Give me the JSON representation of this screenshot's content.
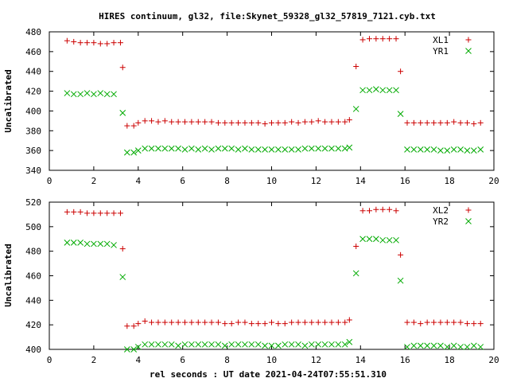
{
  "title": "HIRES continuum, gl32, file:Skynet_59328_gl32_57819_7121.cyb.txt",
  "xlabel": "rel seconds : UT date 2021-04-24T07:55:51.310",
  "colors": {
    "series_a": "#cc0000",
    "series_b": "#00aa00"
  },
  "chart_data": [
    {
      "type": "scatter",
      "ylabel": "Uncalibrated",
      "xlim": [
        0,
        20
      ],
      "ylim": [
        340,
        480
      ],
      "xticks": [
        0,
        2,
        4,
        6,
        8,
        10,
        12,
        14,
        16,
        18,
        20
      ],
      "yticks": [
        340,
        360,
        380,
        400,
        420,
        440,
        460,
        480
      ],
      "legend_position": "top-right",
      "series": [
        {
          "name": "XL1",
          "marker": "plus",
          "points": [
            [
              0.8,
              471
            ],
            [
              1.1,
              470
            ],
            [
              1.4,
              469
            ],
            [
              1.7,
              469
            ],
            [
              2.0,
              469
            ],
            [
              2.3,
              468
            ],
            [
              2.6,
              468
            ],
            [
              2.9,
              469
            ],
            [
              3.2,
              469
            ],
            [
              3.3,
              444
            ],
            [
              3.5,
              385
            ],
            [
              3.8,
              385
            ],
            [
              4.0,
              388
            ],
            [
              4.3,
              390
            ],
            [
              4.6,
              390
            ],
            [
              4.9,
              389
            ],
            [
              5.2,
              390
            ],
            [
              5.5,
              389
            ],
            [
              5.8,
              389
            ],
            [
              6.1,
              389
            ],
            [
              6.4,
              389
            ],
            [
              6.7,
              389
            ],
            [
              7.0,
              389
            ],
            [
              7.3,
              389
            ],
            [
              7.6,
              388
            ],
            [
              7.9,
              388
            ],
            [
              8.2,
              388
            ],
            [
              8.5,
              388
            ],
            [
              8.8,
              388
            ],
            [
              9.1,
              388
            ],
            [
              9.4,
              388
            ],
            [
              9.7,
              387
            ],
            [
              10.0,
              388
            ],
            [
              10.3,
              388
            ],
            [
              10.6,
              388
            ],
            [
              10.9,
              389
            ],
            [
              11.2,
              388
            ],
            [
              11.5,
              389
            ],
            [
              11.8,
              389
            ],
            [
              12.1,
              390
            ],
            [
              12.4,
              389
            ],
            [
              12.7,
              389
            ],
            [
              13.0,
              389
            ],
            [
              13.3,
              389
            ],
            [
              13.5,
              391
            ],
            [
              13.8,
              445
            ],
            [
              14.1,
              472
            ],
            [
              14.4,
              473
            ],
            [
              14.7,
              473
            ],
            [
              15.0,
              473
            ],
            [
              15.3,
              473
            ],
            [
              15.6,
              473
            ],
            [
              15.8,
              440
            ],
            [
              16.1,
              388
            ],
            [
              16.4,
              388
            ],
            [
              16.7,
              388
            ],
            [
              17.0,
              388
            ],
            [
              17.3,
              388
            ],
            [
              17.6,
              388
            ],
            [
              17.9,
              388
            ],
            [
              18.2,
              389
            ],
            [
              18.5,
              388
            ],
            [
              18.8,
              388
            ],
            [
              19.1,
              387
            ],
            [
              19.4,
              388
            ]
          ]
        },
        {
          "name": "YR1",
          "marker": "cross",
          "points": [
            [
              0.8,
              418
            ],
            [
              1.1,
              417
            ],
            [
              1.4,
              417
            ],
            [
              1.7,
              418
            ],
            [
              2.0,
              417
            ],
            [
              2.3,
              418
            ],
            [
              2.6,
              417
            ],
            [
              2.9,
              417
            ],
            [
              3.3,
              398
            ],
            [
              3.5,
              358
            ],
            [
              3.8,
              358
            ],
            [
              4.0,
              360
            ],
            [
              4.3,
              362
            ],
            [
              4.6,
              362
            ],
            [
              4.9,
              362
            ],
            [
              5.2,
              362
            ],
            [
              5.5,
              362
            ],
            [
              5.8,
              362
            ],
            [
              6.1,
              361
            ],
            [
              6.4,
              362
            ],
            [
              6.7,
              361
            ],
            [
              7.0,
              362
            ],
            [
              7.3,
              361
            ],
            [
              7.6,
              362
            ],
            [
              7.9,
              362
            ],
            [
              8.2,
              362
            ],
            [
              8.5,
              361
            ],
            [
              8.8,
              362
            ],
            [
              9.1,
              361
            ],
            [
              9.4,
              361
            ],
            [
              9.7,
              361
            ],
            [
              10.0,
              361
            ],
            [
              10.3,
              361
            ],
            [
              10.6,
              361
            ],
            [
              10.9,
              361
            ],
            [
              11.2,
              361
            ],
            [
              11.5,
              362
            ],
            [
              11.8,
              362
            ],
            [
              12.1,
              362
            ],
            [
              12.4,
              362
            ],
            [
              12.7,
              362
            ],
            [
              13.0,
              362
            ],
            [
              13.3,
              362
            ],
            [
              13.5,
              363
            ],
            [
              13.8,
              402
            ],
            [
              14.1,
              421
            ],
            [
              14.4,
              421
            ],
            [
              14.7,
              422
            ],
            [
              15.0,
              421
            ],
            [
              15.3,
              421
            ],
            [
              15.6,
              421
            ],
            [
              15.8,
              397
            ],
            [
              16.1,
              361
            ],
            [
              16.4,
              361
            ],
            [
              16.7,
              361
            ],
            [
              17.0,
              361
            ],
            [
              17.3,
              361
            ],
            [
              17.6,
              360
            ],
            [
              17.9,
              360
            ],
            [
              18.2,
              361
            ],
            [
              18.5,
              361
            ],
            [
              18.8,
              360
            ],
            [
              19.1,
              360
            ],
            [
              19.4,
              361
            ]
          ]
        }
      ]
    },
    {
      "type": "scatter",
      "ylabel": "Uncalibrated",
      "xlim": [
        0,
        20
      ],
      "ylim": [
        400,
        520
      ],
      "xticks": [
        0,
        2,
        4,
        6,
        8,
        10,
        12,
        14,
        16,
        18,
        20
      ],
      "yticks": [
        400,
        420,
        440,
        460,
        480,
        500,
        520
      ],
      "legend_position": "top-right",
      "series": [
        {
          "name": "XL2",
          "marker": "plus",
          "points": [
            [
              0.8,
              512
            ],
            [
              1.1,
              512
            ],
            [
              1.4,
              512
            ],
            [
              1.7,
              511
            ],
            [
              2.0,
              511
            ],
            [
              2.3,
              511
            ],
            [
              2.6,
              511
            ],
            [
              2.9,
              511
            ],
            [
              3.2,
              511
            ],
            [
              3.3,
              482
            ],
            [
              3.5,
              419
            ],
            [
              3.8,
              419
            ],
            [
              4.0,
              421
            ],
            [
              4.3,
              423
            ],
            [
              4.6,
              422
            ],
            [
              4.9,
              422
            ],
            [
              5.2,
              422
            ],
            [
              5.5,
              422
            ],
            [
              5.8,
              422
            ],
            [
              6.1,
              422
            ],
            [
              6.4,
              422
            ],
            [
              6.7,
              422
            ],
            [
              7.0,
              422
            ],
            [
              7.3,
              422
            ],
            [
              7.6,
              422
            ],
            [
              7.9,
              421
            ],
            [
              8.2,
              421
            ],
            [
              8.5,
              422
            ],
            [
              8.8,
              422
            ],
            [
              9.1,
              421
            ],
            [
              9.4,
              421
            ],
            [
              9.7,
              421
            ],
            [
              10.0,
              422
            ],
            [
              10.3,
              421
            ],
            [
              10.6,
              421
            ],
            [
              10.9,
              422
            ],
            [
              11.2,
              422
            ],
            [
              11.5,
              422
            ],
            [
              11.8,
              422
            ],
            [
              12.1,
              422
            ],
            [
              12.4,
              422
            ],
            [
              12.7,
              422
            ],
            [
              13.0,
              422
            ],
            [
              13.3,
              422
            ],
            [
              13.5,
              424
            ],
            [
              13.8,
              484
            ],
            [
              14.1,
              513
            ],
            [
              14.4,
              513
            ],
            [
              14.7,
              514
            ],
            [
              15.0,
              514
            ],
            [
              15.3,
              514
            ],
            [
              15.6,
              513
            ],
            [
              15.8,
              477
            ],
            [
              16.1,
              422
            ],
            [
              16.4,
              422
            ],
            [
              16.7,
              421
            ],
            [
              17.0,
              422
            ],
            [
              17.3,
              422
            ],
            [
              17.6,
              422
            ],
            [
              17.9,
              422
            ],
            [
              18.2,
              422
            ],
            [
              18.5,
              422
            ],
            [
              18.8,
              421
            ],
            [
              19.1,
              421
            ],
            [
              19.4,
              421
            ]
          ]
        },
        {
          "name": "YR2",
          "marker": "cross",
          "points": [
            [
              0.8,
              487
            ],
            [
              1.1,
              487
            ],
            [
              1.4,
              487
            ],
            [
              1.7,
              486
            ],
            [
              2.0,
              486
            ],
            [
              2.3,
              486
            ],
            [
              2.6,
              486
            ],
            [
              2.9,
              485
            ],
            [
              3.3,
              459
            ],
            [
              3.5,
              400
            ],
            [
              3.8,
              400
            ],
            [
              4.0,
              402
            ],
            [
              4.3,
              404
            ],
            [
              4.6,
              404
            ],
            [
              4.9,
              404
            ],
            [
              5.2,
              404
            ],
            [
              5.5,
              404
            ],
            [
              5.8,
              403
            ],
            [
              6.1,
              404
            ],
            [
              6.4,
              404
            ],
            [
              6.7,
              404
            ],
            [
              7.0,
              404
            ],
            [
              7.3,
              404
            ],
            [
              7.6,
              404
            ],
            [
              7.9,
              403
            ],
            [
              8.2,
              404
            ],
            [
              8.5,
              404
            ],
            [
              8.8,
              404
            ],
            [
              9.1,
              404
            ],
            [
              9.4,
              404
            ],
            [
              9.7,
              403
            ],
            [
              10.0,
              403
            ],
            [
              10.3,
              403
            ],
            [
              10.6,
              404
            ],
            [
              10.9,
              404
            ],
            [
              11.2,
              404
            ],
            [
              11.5,
              403
            ],
            [
              11.8,
              404
            ],
            [
              12.1,
              404
            ],
            [
              12.4,
              404
            ],
            [
              12.7,
              404
            ],
            [
              13.0,
              404
            ],
            [
              13.3,
              404
            ],
            [
              13.5,
              406
            ],
            [
              13.8,
              462
            ],
            [
              14.1,
              490
            ],
            [
              14.4,
              490
            ],
            [
              14.7,
              490
            ],
            [
              15.0,
              489
            ],
            [
              15.3,
              489
            ],
            [
              15.6,
              489
            ],
            [
              15.8,
              456
            ],
            [
              16.1,
              402
            ],
            [
              16.4,
              403
            ],
            [
              16.7,
              403
            ],
            [
              17.0,
              403
            ],
            [
              17.3,
              403
            ],
            [
              17.6,
              403
            ],
            [
              17.9,
              402
            ],
            [
              18.2,
              403
            ],
            [
              18.5,
              402
            ],
            [
              18.8,
              402
            ],
            [
              19.1,
              403
            ],
            [
              19.4,
              402
            ]
          ]
        }
      ]
    }
  ]
}
